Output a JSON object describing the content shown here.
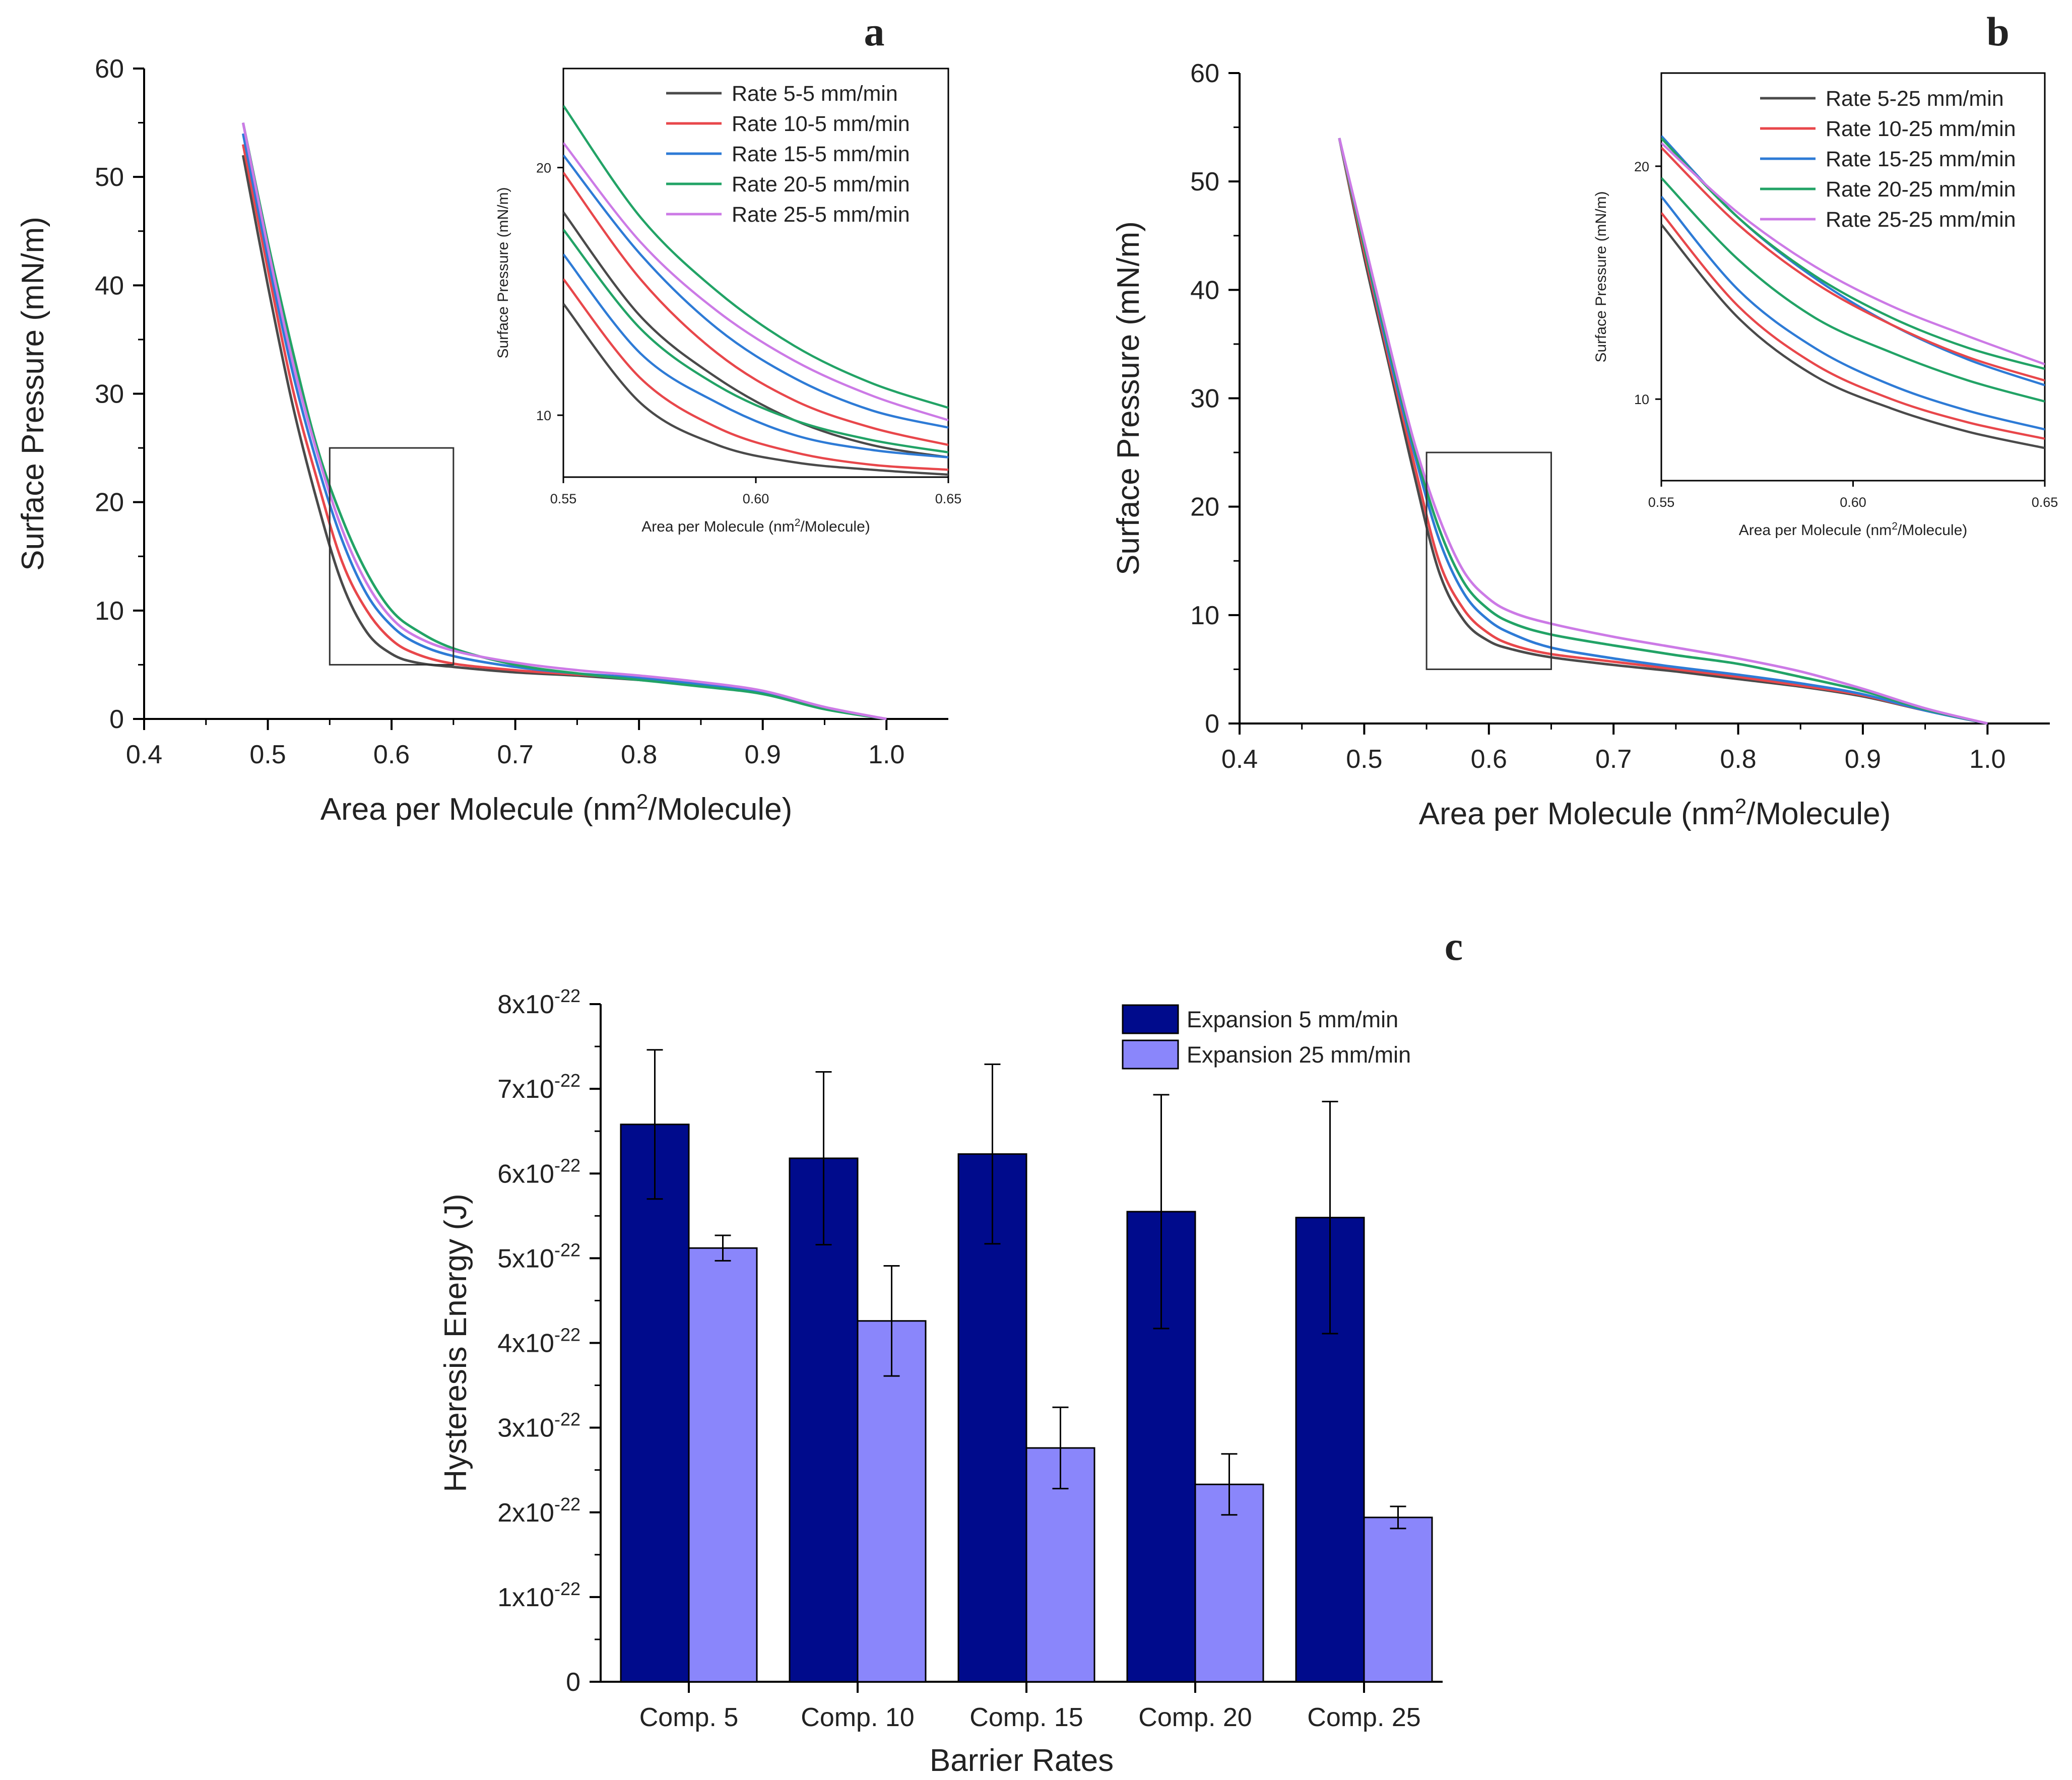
{
  "chart_data": [
    {
      "id": "a",
      "type": "line",
      "panel_label": "a",
      "xlabel_prefix": "Area per Molecule (nm",
      "xlabel_sup": "2",
      "xlabel_suffix": "/Molecule)",
      "ylabel": "Surface Pressure (mN/m)",
      "xlim": [
        0.4,
        1.05
      ],
      "ylim": [
        0,
        60
      ],
      "xticks": [
        "0.4",
        "0.5",
        "0.6",
        "0.7",
        "0.8",
        "0.9",
        "1.0"
      ],
      "yticks": [
        "0",
        "10",
        "20",
        "30",
        "40",
        "50",
        "60"
      ],
      "zoom_box": {
        "x": [
          0.55,
          0.65
        ],
        "y": [
          5,
          25
        ]
      },
      "series": [
        {
          "name": "Rate 5-5 mm/min",
          "color": "#4a4a4a",
          "x": [
            0.48,
            0.5,
            0.52,
            0.54,
            0.56,
            0.58,
            0.6,
            0.62,
            0.65,
            0.7,
            0.75,
            0.8,
            0.85,
            0.9,
            0.95,
            1.0
          ],
          "y": [
            52,
            40,
            29,
            20,
            12.5,
            8,
            6,
            5.2,
            4.8,
            4.3,
            4,
            3.6,
            3.1,
            2.5,
            1,
            0
          ]
        },
        {
          "name": "Rate 10-5 mm/min",
          "color": "#e8474b",
          "x": [
            0.48,
            0.5,
            0.52,
            0.54,
            0.56,
            0.58,
            0.6,
            0.62,
            0.65,
            0.7,
            0.75,
            0.8,
            0.85,
            0.9,
            0.95,
            1.0
          ],
          "y": [
            53,
            41.5,
            30.5,
            22,
            14.5,
            10,
            7.3,
            6,
            5.1,
            4.5,
            4.1,
            3.7,
            3.1,
            2.4,
            1,
            0
          ]
        },
        {
          "name": "Rate 15-5 mm/min",
          "color": "#2e7bd6",
          "x": [
            0.48,
            0.5,
            0.52,
            0.54,
            0.56,
            0.58,
            0.6,
            0.62,
            0.65,
            0.7,
            0.75,
            0.8,
            0.85,
            0.9,
            0.95,
            1.0
          ],
          "y": [
            54,
            42.5,
            32,
            23.5,
            16.5,
            11.5,
            8.6,
            7,
            5.8,
            4.8,
            4.2,
            3.8,
            3.2,
            2.5,
            1,
            0
          ]
        },
        {
          "name": "Rate 20-5 mm/min",
          "color": "#22a366",
          "x": [
            0.48,
            0.5,
            0.52,
            0.54,
            0.56,
            0.58,
            0.6,
            0.62,
            0.65,
            0.7,
            0.75,
            0.8,
            0.85,
            0.9,
            0.95,
            1.0
          ],
          "y": [
            55,
            44,
            34,
            25,
            18.5,
            13.5,
            10,
            8.2,
            6.5,
            5,
            4.2,
            3.6,
            3,
            2.3,
            0.9,
            0
          ]
        },
        {
          "name": "Rate 25-5 mm/min",
          "color": "#cc7ae6",
          "x": [
            0.48,
            0.5,
            0.52,
            0.54,
            0.56,
            0.58,
            0.6,
            0.62,
            0.65,
            0.7,
            0.75,
            0.8,
            0.85,
            0.9,
            0.95,
            1.0
          ],
          "y": [
            55,
            43.5,
            33,
            24.5,
            17.5,
            12.5,
            9.3,
            7.6,
            6.3,
            5.2,
            4.5,
            4,
            3.4,
            2.6,
            1.1,
            0
          ]
        }
      ],
      "inset": {
        "xlabel_prefix": "Area per Molecule (nm",
        "xlabel_sup": "2",
        "xlabel_suffix": "/Molecule)",
        "ylabel": "Surface Pressure (mN/m)",
        "xlim": [
          0.55,
          0.65
        ],
        "ylim": [
          7.5,
          24
        ],
        "xticks": [
          "0.55",
          "0.60",
          "0.65"
        ],
        "yticks": [
          "10",
          "20"
        ],
        "legend": [
          "Rate 5-5 mm/min",
          "Rate 10-5 mm/min",
          "Rate 15-5 mm/min",
          "Rate 20-5 mm/min",
          "Rate 25-5 mm/min"
        ],
        "series": [
          {
            "color": "#4a4a4a",
            "x": [
              0.55,
              0.57,
              0.59,
              0.61,
              0.63,
              0.65
            ],
            "y": [
              14.5,
              10.5,
              8.8,
              8.1,
              7.8,
              7.6
            ]
          },
          {
            "color": "#4a4a4a",
            "x": [
              0.55,
              0.57,
              0.59,
              0.61,
              0.63,
              0.65
            ],
            "y": [
              18.2,
              14,
              11.5,
              9.8,
              8.8,
              8.3
            ]
          },
          {
            "color": "#e8474b",
            "x": [
              0.55,
              0.57,
              0.59,
              0.61,
              0.63,
              0.65
            ],
            "y": [
              15.5,
              11.5,
              9.5,
              8.5,
              8,
              7.8
            ]
          },
          {
            "color": "#e8474b",
            "x": [
              0.55,
              0.57,
              0.59,
              0.61,
              0.63,
              0.65
            ],
            "y": [
              19.8,
              15.5,
              12.5,
              10.6,
              9.5,
              8.8
            ]
          },
          {
            "color": "#2e7bd6",
            "x": [
              0.55,
              0.57,
              0.59,
              0.61,
              0.63,
              0.65
            ],
            "y": [
              16.5,
              12.5,
              10.5,
              9.2,
              8.6,
              8.3
            ]
          },
          {
            "color": "#2e7bd6",
            "x": [
              0.55,
              0.57,
              0.59,
              0.61,
              0.63,
              0.65
            ],
            "y": [
              20.5,
              16.5,
              13.5,
              11.5,
              10.2,
              9.5
            ]
          },
          {
            "color": "#22a366",
            "x": [
              0.55,
              0.57,
              0.59,
              0.61,
              0.63,
              0.65
            ],
            "y": [
              17.5,
              13.5,
              11.2,
              9.8,
              9,
              8.5
            ]
          },
          {
            "color": "#22a366",
            "x": [
              0.55,
              0.57,
              0.59,
              0.61,
              0.63,
              0.65
            ],
            "y": [
              22.5,
              18,
              15,
              12.8,
              11.3,
              10.3
            ]
          },
          {
            "color": "#cc7ae6",
            "x": [
              0.55,
              0.57,
              0.59,
              0.61,
              0.63,
              0.65
            ],
            "y": [
              21,
              17,
              14.2,
              12.2,
              10.8,
              9.8
            ]
          }
        ]
      }
    },
    {
      "id": "b",
      "type": "line",
      "panel_label": "b",
      "xlabel_prefix": "Area per Molecule (nm",
      "xlabel_sup": "2",
      "xlabel_suffix": "/Molecule)",
      "ylabel": "Surface Pressure (mN/m)",
      "xlim": [
        0.4,
        1.05
      ],
      "ylim": [
        0,
        60
      ],
      "xticks": [
        "0.4",
        "0.5",
        "0.6",
        "0.7",
        "0.8",
        "0.9",
        "1.0"
      ],
      "yticks": [
        "0",
        "10",
        "20",
        "30",
        "40",
        "50",
        "60"
      ],
      "zoom_box": {
        "x": [
          0.55,
          0.65
        ],
        "y": [
          5,
          25
        ]
      },
      "series": [
        {
          "name": "Rate 5-25 mm/min",
          "color": "#4a4a4a",
          "x": [
            0.48,
            0.5,
            0.52,
            0.54,
            0.56,
            0.58,
            0.6,
            0.62,
            0.65,
            0.7,
            0.75,
            0.8,
            0.85,
            0.9,
            0.95,
            1.0
          ],
          "y": [
            54,
            43,
            33,
            23,
            14,
            9.5,
            7.6,
            6.8,
            6.1,
            5.4,
            4.8,
            4.1,
            3.4,
            2.5,
            1.2,
            0
          ]
        },
        {
          "name": "Rate 10-25 mm/min",
          "color": "#e8474b",
          "x": [
            0.48,
            0.5,
            0.52,
            0.54,
            0.56,
            0.58,
            0.6,
            0.62,
            0.65,
            0.7,
            0.75,
            0.8,
            0.85,
            0.9,
            0.95,
            1.0
          ],
          "y": [
            54,
            43.5,
            33.5,
            24,
            15,
            10.5,
            8.3,
            7.2,
            6.4,
            5.7,
            5,
            4.3,
            3.5,
            2.6,
            1.2,
            0
          ]
        },
        {
          "name": "Rate 15-25 mm/min",
          "color": "#2e7bd6",
          "x": [
            0.48,
            0.5,
            0.52,
            0.54,
            0.56,
            0.58,
            0.6,
            0.62,
            0.65,
            0.7,
            0.75,
            0.8,
            0.85,
            0.9,
            0.95,
            1.0
          ],
          "y": [
            54,
            44,
            34,
            25,
            17,
            12,
            9.5,
            8.2,
            7,
            6,
            5.2,
            4.5,
            3.7,
            2.7,
            1.2,
            0
          ]
        },
        {
          "name": "Rate 20-25 mm/min",
          "color": "#22a366",
          "x": [
            0.48,
            0.5,
            0.52,
            0.54,
            0.56,
            0.58,
            0.6,
            0.62,
            0.65,
            0.7,
            0.75,
            0.8,
            0.85,
            0.9,
            0.95,
            1.0
          ],
          "y": [
            54,
            44,
            34.5,
            25.5,
            18,
            13,
            10.5,
            9.2,
            8.2,
            7.2,
            6.3,
            5.5,
            4.3,
            3,
            1.3,
            0
          ]
        },
        {
          "name": "Rate 25-25 mm/min",
          "color": "#cc7ae6",
          "x": [
            0.48,
            0.5,
            0.52,
            0.54,
            0.56,
            0.58,
            0.6,
            0.62,
            0.65,
            0.7,
            0.75,
            0.8,
            0.85,
            0.9,
            0.95,
            1.0
          ],
          "y": [
            54,
            44.5,
            35,
            26,
            19,
            14,
            11.5,
            10.2,
            9.2,
            8,
            7,
            6,
            4.8,
            3.2,
            1.4,
            0
          ]
        }
      ],
      "inset": {
        "xlabel_prefix": "Area per Molecule (nm",
        "xlabel_sup": "2",
        "xlabel_suffix": "/Molecule)",
        "ylabel": "Surface Pressure (mN/m)",
        "xlim": [
          0.55,
          0.65
        ],
        "ylim": [
          6.5,
          24
        ],
        "xticks": [
          "0.55",
          "0.60",
          "0.65"
        ],
        "yticks": [
          "10",
          "20"
        ],
        "legend": [
          "Rate 5-25 mm/min",
          "Rate 10-25 mm/min",
          "Rate 15-25 mm/min",
          "Rate 20-25 mm/min",
          "Rate 25-25 mm/min"
        ],
        "series": [
          {
            "color": "#4a4a4a",
            "x": [
              0.55,
              0.57,
              0.59,
              0.61,
              0.63,
              0.65
            ],
            "y": [
              17.5,
              13.5,
              11,
              9.6,
              8.6,
              7.9
            ]
          },
          {
            "color": "#e8474b",
            "x": [
              0.55,
              0.57,
              0.59,
              0.61,
              0.63,
              0.65
            ],
            "y": [
              18,
              14,
              11.5,
              10,
              9,
              8.3
            ]
          },
          {
            "color": "#2e7bd6",
            "x": [
              0.55,
              0.57,
              0.59,
              0.61,
              0.63,
              0.65
            ],
            "y": [
              18.7,
              14.7,
              12.2,
              10.6,
              9.5,
              8.7
            ]
          },
          {
            "color": "#22a366",
            "x": [
              0.55,
              0.57,
              0.59,
              0.61,
              0.63,
              0.65
            ],
            "y": [
              19.5,
              16,
              13.5,
              12,
              10.8,
              9.9
            ]
          },
          {
            "color": "#2e7bd6",
            "x": [
              0.55,
              0.57,
              0.59,
              0.61,
              0.63,
              0.65
            ],
            "y": [
              21.3,
              17.8,
              15.2,
              13.2,
              11.7,
              10.6
            ]
          },
          {
            "color": "#e8474b",
            "x": [
              0.55,
              0.57,
              0.59,
              0.61,
              0.63,
              0.65
            ],
            "y": [
              20.8,
              17.5,
              15,
              13.2,
              11.8,
              10.8
            ]
          },
          {
            "color": "#22a366",
            "x": [
              0.55,
              0.57,
              0.59,
              0.61,
              0.63,
              0.65
            ],
            "y": [
              21.2,
              17.8,
              15.3,
              13.5,
              12.2,
              11.3
            ]
          },
          {
            "color": "#cc7ae6",
            "x": [
              0.55,
              0.57,
              0.59,
              0.61,
              0.63,
              0.65
            ],
            "y": [
              21,
              18,
              15.7,
              14,
              12.7,
              11.5
            ]
          }
        ]
      }
    },
    {
      "id": "c",
      "type": "bar",
      "panel_label": "c",
      "xlabel": "Barrier Rates",
      "ylabel": "Hysteresis Energy (J)",
      "ylim": [
        0,
        8
      ],
      "y_unit_exponent": "-22",
      "yticks": [
        {
          "mantissa": "0",
          "exp": ""
        },
        {
          "mantissa": "1x10",
          "exp": "-22"
        },
        {
          "mantissa": "2x10",
          "exp": "-22"
        },
        {
          "mantissa": "3x10",
          "exp": "-22"
        },
        {
          "mantissa": "4x10",
          "exp": "-22"
        },
        {
          "mantissa": "5x10",
          "exp": "-22"
        },
        {
          "mantissa": "6x10",
          "exp": "-22"
        },
        {
          "mantissa": "7x10",
          "exp": "-22"
        },
        {
          "mantissa": "8x10",
          "exp": "-22"
        }
      ],
      "categories": [
        "Comp. 5",
        "Comp. 10",
        "Comp. 15",
        "Comp. 20",
        "Comp. 25"
      ],
      "series": [
        {
          "name": "Expansion 5 mm/min",
          "color": "#000b8c",
          "values": [
            6.58,
            6.18,
            6.23,
            5.55,
            5.48
          ],
          "errors": [
            0.88,
            1.02,
            1.06,
            1.38,
            1.37
          ]
        },
        {
          "name": "Expansion 25 mm/min",
          "color": "#8a86fb",
          "values": [
            5.12,
            4.26,
            2.76,
            2.33,
            1.94
          ],
          "errors": [
            0.15,
            0.65,
            0.48,
            0.36,
            0.13
          ]
        }
      ]
    }
  ]
}
